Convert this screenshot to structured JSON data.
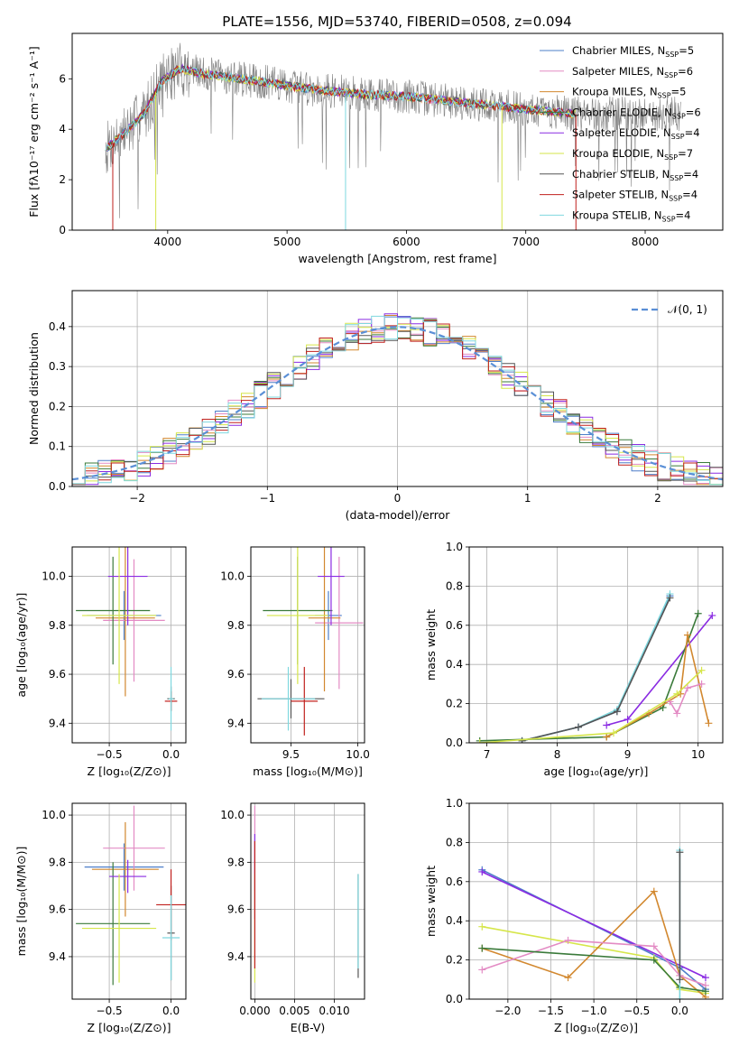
{
  "page": {
    "title": "PLATE=1556, MJD=53740, FIBERID=0508, z=0.094"
  },
  "colors": {
    "chabrier_miles": "#4e7fc9",
    "salpeter_miles": "#e38bc4",
    "kroupa_miles": "#d2882f",
    "chabrier_elodie": "#3a7a3a",
    "salpeter_elodie": "#8a2be2",
    "kroupa_elodie": "#d6e64a",
    "chabrier_stelib": "#555555",
    "salpeter_stelib": "#c0201d",
    "kroupa_stelib": "#7fd8df",
    "data": "#808080",
    "gaussian": "#5a8fd6"
  },
  "chart_data": [
    {
      "type": "line",
      "id": "spectrum",
      "title": "PLATE=1556, MJD=53740, FIBERID=0508, z=0.094",
      "xlabel": "wavelength [Angstrom, rest frame]",
      "ylabel": "Flux [fλ10⁻¹⁷ erg cm⁻² s⁻¹ A⁻¹]",
      "xlim": [
        3200,
        8650
      ],
      "ylim": [
        0,
        7.8
      ],
      "xticks": [
        "4000",
        "5000",
        "6000",
        "7000",
        "8000"
      ],
      "yticks": [
        "0",
        "2",
        "4",
        "6"
      ],
      "legend_position": "top-right",
      "legend": [
        {
          "pre": "Chabrier MILES, N",
          "n": "5",
          "key": "chabrier_miles"
        },
        {
          "pre": "Salpeter MILES, N",
          "n": "6",
          "key": "salpeter_miles"
        },
        {
          "pre": "Kroupa MILES, N",
          "n": "5",
          "key": "kroupa_miles"
        },
        {
          "pre": "Chabrier ELODIE, N",
          "n": "6",
          "key": "chabrier_elodie"
        },
        {
          "pre": "Salpeter ELODIE, N",
          "n": "4",
          "key": "salpeter_elodie"
        },
        {
          "pre": "Kroupa ELODIE, N",
          "n": "7",
          "key": "kroupa_elodie"
        },
        {
          "pre": "Chabrier STELIB, N",
          "n": "4",
          "key": "chabrier_stelib"
        },
        {
          "pre": "Salpeter STELIB, N",
          "n": "4",
          "key": "salpeter_stelib"
        },
        {
          "pre": "Kroupa STELIB, N",
          "n": "4",
          "key": "kroupa_stelib"
        }
      ],
      "legend_sub": "SSP",
      "continuum": {
        "x": [
          3500,
          3650,
          3800,
          3950,
          4100,
          4300,
          4600,
          4900,
          5200,
          5600,
          6000,
          6400,
          6800,
          7200,
          7400
        ],
        "y": [
          3.3,
          3.9,
          4.6,
          5.9,
          6.4,
          6.2,
          6.0,
          5.8,
          5.6,
          5.4,
          5.3,
          5.1,
          4.9,
          4.7,
          4.6
        ]
      }
    },
    {
      "type": "histogram",
      "id": "residuals",
      "xlabel": "(data-model)/error",
      "ylabel": "Normed distribution",
      "xlim": [
        -2.5,
        2.5
      ],
      "ylim": [
        0,
        0.49
      ],
      "xticks": [
        "−2",
        "−1",
        "0",
        "1",
        "2"
      ],
      "yticks": [
        "0.0",
        "0.1",
        "0.2",
        "0.3",
        "0.4"
      ],
      "bin_width": 0.1,
      "bin_start": -2.5,
      "normal_label": "𝒩(0, 1)",
      "normal_mu": 0,
      "normal_sigma": 1
    },
    {
      "type": "scatter",
      "id": "age-vs-z",
      "xlabel": "Z [log₁₀(Z/Z⊙)]",
      "ylabel": "age  [log₁₀(age/yr)]",
      "xlim": [
        -0.8,
        0.12
      ],
      "ylim": [
        9.32,
        10.12
      ],
      "xticks": [
        "−0.5",
        "0.0"
      ],
      "yticks": [
        "9.4",
        "9.6",
        "9.8",
        "10.0"
      ],
      "errorbars": [
        {
          "key": "chabrier_miles",
          "x": -0.38,
          "xerr": 0.3,
          "y": 9.84,
          "yerr": 0.1
        },
        {
          "key": "salpeter_miles",
          "x": -0.3,
          "xerr": 0.25,
          "y": 9.82,
          "yerr": 0.25
        },
        {
          "key": "kroupa_miles",
          "x": -0.37,
          "xerr": 0.24,
          "y": 9.83,
          "yerr": 0.32
        },
        {
          "key": "chabrier_elodie",
          "x": -0.47,
          "xerr": 0.3,
          "y": 9.86,
          "yerr": 0.22
        },
        {
          "key": "salpeter_elodie",
          "x": -0.35,
          "xerr": 0.16,
          "y": 10.0,
          "yerr": 0.2
        },
        {
          "key": "kroupa_elodie",
          "x": -0.42,
          "xerr": 0.3,
          "y": 9.84,
          "yerr": 0.28
        },
        {
          "key": "chabrier_stelib",
          "x": 0.0,
          "xerr": 0.03,
          "y": 9.5,
          "yerr": 0.05
        },
        {
          "key": "salpeter_stelib",
          "x": 0.0,
          "xerr": 0.05,
          "y": 9.49,
          "yerr": 0.04
        },
        {
          "key": "kroupa_stelib",
          "x": 0.0,
          "xerr": 0.02,
          "y": 9.5,
          "yerr": 0.13
        }
      ]
    },
    {
      "type": "scatter",
      "id": "age-vs-mass",
      "xlabel": "mass [log₁₀(M/M⊙)]",
      "ylabel": "",
      "xlim": [
        9.2,
        10.05
      ],
      "ylim": [
        9.32,
        10.12
      ],
      "xticks": [
        "9.5",
        "10.0"
      ],
      "yticks": [
        "9.4",
        "9.6",
        "9.8",
        "10.0"
      ],
      "errorbars": [
        {
          "key": "chabrier_miles",
          "x": 9.78,
          "xerr": 0.1,
          "y": 9.84,
          "yerr": 0.1
        },
        {
          "key": "salpeter_miles",
          "x": 9.86,
          "xerr": 0.18,
          "y": 9.81,
          "yerr": 0.27
        },
        {
          "key": "kroupa_miles",
          "x": 9.75,
          "xerr": 0.12,
          "y": 9.83,
          "yerr": 0.3
        },
        {
          "key": "chabrier_elodie",
          "x": 9.55,
          "xerr": 0.26,
          "y": 9.86,
          "yerr": 0.22
        },
        {
          "key": "salpeter_elodie",
          "x": 9.8,
          "xerr": 0.1,
          "y": 10.0,
          "yerr": 0.2
        },
        {
          "key": "kroupa_elodie",
          "x": 9.55,
          "xerr": 0.23,
          "y": 9.84,
          "yerr": 0.28
        },
        {
          "key": "chabrier_stelib",
          "x": 9.5,
          "xerr": 0.25,
          "y": 9.5,
          "yerr": 0.08
        },
        {
          "key": "salpeter_stelib",
          "x": 9.6,
          "xerr": 0.1,
          "y": 9.49,
          "yerr": 0.14
        },
        {
          "key": "kroupa_stelib",
          "x": 9.48,
          "xerr": 0.2,
          "y": 9.5,
          "yerr": 0.13
        }
      ]
    },
    {
      "type": "line",
      "id": "weight-vs-age",
      "xlabel": "age  [log₁₀(age/yr)]",
      "ylabel": "mass weight",
      "xlim": [
        6.75,
        10.35
      ],
      "ylim": [
        0,
        1.0
      ],
      "grid": true,
      "xticks": [
        "7",
        "8",
        "9",
        "10"
      ],
      "yticks": [
        "0.0",
        "0.2",
        "0.4",
        "0.6",
        "0.8",
        "1.0"
      ],
      "series": [
        {
          "key": "chabrier_miles",
          "x": [
            7.5,
            8.3,
            8.85,
            9.6
          ],
          "y": [
            0.01,
            0.08,
            0.16,
            0.75
          ]
        },
        {
          "key": "kroupa_stelib",
          "x": [
            7.5,
            8.3,
            8.85,
            9.6
          ],
          "y": [
            0.01,
            0.08,
            0.17,
            0.76
          ]
        },
        {
          "key": "chabrier_stelib",
          "x": [
            7.5,
            8.3,
            8.85,
            9.6
          ],
          "y": [
            0.01,
            0.08,
            0.16,
            0.74
          ]
        },
        {
          "key": "salpeter_elodie",
          "x": [
            8.7,
            9.0,
            10.2
          ],
          "y": [
            0.09,
            0.12,
            0.65
          ]
        },
        {
          "key": "chabrier_elodie",
          "x": [
            6.9,
            8.7,
            9.5,
            10.0
          ],
          "y": [
            0.01,
            0.03,
            0.18,
            0.66
          ]
        },
        {
          "key": "kroupa_miles",
          "x": [
            8.7,
            9.3,
            9.75,
            9.85,
            10.15
          ],
          "y": [
            0.03,
            0.15,
            0.25,
            0.55,
            0.1
          ]
        },
        {
          "key": "salpeter_miles",
          "x": [
            9.6,
            9.7,
            9.85,
            10.05
          ],
          "y": [
            0.21,
            0.15,
            0.28,
            0.3
          ]
        },
        {
          "key": "kroupa_elodie",
          "x": [
            6.9,
            8.8,
            9.7,
            10.05
          ],
          "y": [
            0.0,
            0.05,
            0.25,
            0.37
          ]
        }
      ]
    },
    {
      "type": "scatter",
      "id": "mass-vs-z",
      "xlabel": "Z [log₁₀(Z/Z⊙)]",
      "ylabel": "mass [log₁₀(M/M⊙)]",
      "xlim": [
        -0.8,
        0.12
      ],
      "ylim": [
        9.22,
        10.05
      ],
      "xticks": [
        "−0.5",
        "0.0"
      ],
      "yticks": [
        "9.4",
        "9.6",
        "9.8",
        "10.0"
      ],
      "errorbars": [
        {
          "key": "chabrier_miles",
          "x": -0.38,
          "xerr": 0.32,
          "y": 9.78,
          "yerr": 0.1
        },
        {
          "key": "salpeter_miles",
          "x": -0.3,
          "xerr": 0.25,
          "y": 9.86,
          "yerr": 0.18
        },
        {
          "key": "kroupa_miles",
          "x": -0.37,
          "xerr": 0.27,
          "y": 9.77,
          "yerr": 0.2
        },
        {
          "key": "chabrier_elodie",
          "x": -0.47,
          "xerr": 0.3,
          "y": 9.54,
          "yerr": 0.26
        },
        {
          "key": "salpeter_elodie",
          "x": -0.35,
          "xerr": 0.15,
          "y": 9.74,
          "yerr": 0.07
        },
        {
          "key": "kroupa_elodie",
          "x": -0.42,
          "xerr": 0.3,
          "y": 9.52,
          "yerr": 0.23
        },
        {
          "key": "chabrier_stelib",
          "x": 0.0,
          "xerr": 0.03,
          "y": 9.5,
          "yerr": 0.2
        },
        {
          "key": "salpeter_stelib",
          "x": 0.0,
          "xerr": 0.12,
          "y": 9.62,
          "yerr": 0.15
        },
        {
          "key": "kroupa_stelib",
          "x": 0.0,
          "xerr": 0.07,
          "y": 9.48,
          "yerr": 0.18
        }
      ]
    },
    {
      "type": "scatter",
      "id": "mass-vs-ebv",
      "xlabel": "E(B-V)",
      "ylabel": "",
      "xlim": [
        -0.0005,
        0.0138
      ],
      "ylim": [
        9.22,
        10.05
      ],
      "xticks": [
        "0.000",
        "0.005",
        "0.010"
      ],
      "yticks": [
        "9.4",
        "9.6",
        "9.8",
        "10.0"
      ],
      "errorbars": [
        {
          "key": "salpeter_miles",
          "x": 0.0,
          "xerr": 0,
          "y": 9.86,
          "yerr": 0.18
        },
        {
          "key": "salpeter_elodie",
          "x": 0.0,
          "xerr": 0,
          "y": 9.74,
          "yerr": 0.18
        },
        {
          "key": "kroupa_elodie",
          "x": 0.0,
          "xerr": 0,
          "y": 9.52,
          "yerr": 0.23
        },
        {
          "key": "salpeter_stelib",
          "x": 0.0,
          "xerr": 0,
          "y": 9.62,
          "yerr": 0.27
        },
        {
          "key": "chabrier_stelib",
          "x": 0.013,
          "xerr": 0,
          "y": 9.53,
          "yerr": 0.22
        },
        {
          "key": "kroupa_stelib",
          "x": 0.013,
          "xerr": 0,
          "y": 9.55,
          "yerr": 0.2
        }
      ]
    },
    {
      "type": "line",
      "id": "weight-vs-z",
      "xlabel": "Z [log₁₀(Z/Z⊙)]",
      "ylabel": "mass weight",
      "xlim": [
        -2.45,
        0.5
      ],
      "ylim": [
        0,
        1.0
      ],
      "grid": true,
      "xticks": [
        "−2.0",
        "−1.5",
        "−1.0",
        "−0.5",
        "0.0"
      ],
      "yticks": [
        "0.0",
        "0.2",
        "0.4",
        "0.6",
        "0.8",
        "1.0"
      ],
      "series": [
        {
          "key": "chabrier_miles",
          "x": [
            -2.3,
            0.0,
            0.3
          ],
          "y": [
            0.66,
            0.16,
            0.05
          ]
        },
        {
          "key": "salpeter_elodie",
          "x": [
            -2.3,
            0.3
          ],
          "y": [
            0.65,
            0.11
          ]
        },
        {
          "key": "kroupa_elodie",
          "x": [
            -2.3,
            -0.3,
            0.0,
            0.3
          ],
          "y": [
            0.37,
            0.21,
            0.05,
            0.03
          ]
        },
        {
          "key": "kroupa_miles",
          "x": [
            -2.3,
            -1.3,
            -0.3,
            0.0,
            0.3
          ],
          "y": [
            0.26,
            0.11,
            0.55,
            0.12,
            0.01
          ]
        },
        {
          "key": "salpeter_miles",
          "x": [
            -2.3,
            -1.3,
            -0.3,
            0.0,
            0.3
          ],
          "y": [
            0.15,
            0.3,
            0.27,
            0.12,
            0.07
          ]
        },
        {
          "key": "chabrier_elodie",
          "x": [
            -2.3,
            -0.3,
            0.0,
            0.3
          ],
          "y": [
            0.26,
            0.2,
            0.06,
            0.04
          ]
        },
        {
          "key": "kroupa_stelib",
          "x": [
            0.0,
            0.0
          ],
          "y": [
            0.0,
            0.76
          ]
        },
        {
          "key": "chabrier_stelib",
          "x": [
            0.0,
            0.0
          ],
          "y": [
            0.1,
            0.75
          ]
        }
      ]
    }
  ]
}
